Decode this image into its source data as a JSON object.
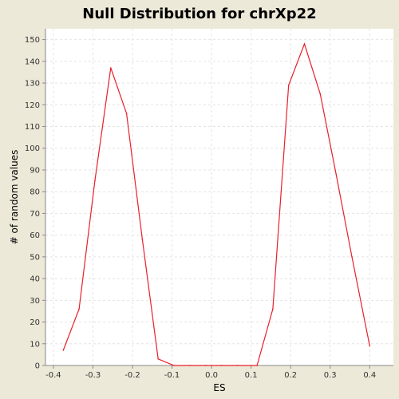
{
  "chart_data": {
    "type": "line",
    "title": "Null Distribution for chrXp22",
    "xlabel": "ES",
    "ylabel": "# of random values",
    "xlim": [
      -0.42,
      0.46
    ],
    "ylim": [
      0,
      155
    ],
    "xticks": [
      -0.4,
      -0.3,
      -0.2,
      -0.1,
      0.0,
      0.1,
      0.2,
      0.3,
      0.4
    ],
    "xtick_labels": [
      "-0.4",
      "-0.3",
      "-0.2",
      "-0.1",
      "0.0",
      "0.1",
      "0.2",
      "0.3",
      "0.4"
    ],
    "yticks": [
      0,
      10,
      20,
      30,
      40,
      50,
      60,
      70,
      80,
      90,
      100,
      110,
      120,
      130,
      140,
      150
    ],
    "ytick_labels": [
      "0",
      "10",
      "20",
      "30",
      "40",
      "50",
      "60",
      "70",
      "80",
      "90",
      "100",
      "110",
      "120",
      "130",
      "140",
      "150"
    ],
    "grid": true,
    "series": [
      {
        "color": "#e8202a",
        "x": [
          -0.375,
          -0.335,
          -0.295,
          -0.255,
          -0.215,
          -0.175,
          -0.135,
          -0.095,
          -0.055,
          -0.015,
          0.025,
          0.065,
          0.115,
          0.155,
          0.195,
          0.235,
          0.275,
          0.315,
          0.355,
          0.4
        ],
        "y": [
          7,
          26,
          85,
          137,
          116,
          58,
          3,
          0,
          0,
          0,
          0,
          0,
          0,
          26,
          129,
          148,
          125,
          88,
          50,
          9
        ]
      }
    ]
  }
}
